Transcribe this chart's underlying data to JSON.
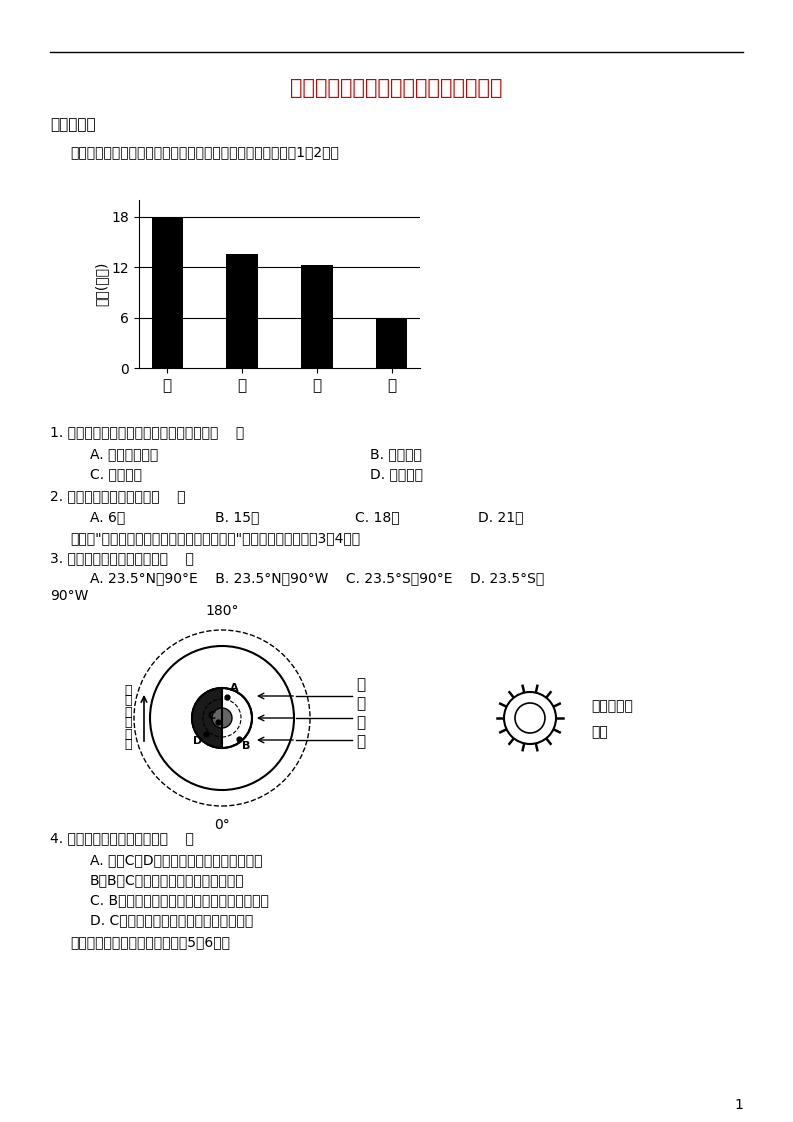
{
  "title": "建瓯二中高三上学期期末考试地理试题",
  "section1": "一，选择题",
  "intro1": "下图为夏至日甲、乙、丙、丁四个地点的昼长状况，读图回答1～2题。",
  "bar_ylabel": "昼长(小时)",
  "bar_categories": [
    "甲",
    "乙",
    "丙",
    "丁"
  ],
  "bar_values": [
    18,
    13.5,
    12.2,
    6
  ],
  "bar_yticks": [
    0,
    6,
    12,
    18
  ],
  "bar_color": "#000000",
  "q1": "1. 甲、乙、丙、丁四个地点的排列顺序是（    ）",
  "q1a": "A. 由低纬到高纬",
  "q1b": "B. 由北到南",
  "q1c": "C. 由东到西",
  "q1d": "D. 由南到北",
  "q2": "2. 图中甲地的日落时刻是（    ）",
  "q2a": "A. 6时",
  "q2b": "B. 15时",
  "q2c": "C. 18时",
  "q2d": "D. 21时",
  "intro2": "下图为\"二分二至节气中某极点上空的俯视图\"，根据图中信息回答3～4题。",
  "q3": "3. 太阳直射点的地理坐标是（    ）",
  "q3opts": "A. 23.5°N，90°E    B. 23.5°N，90°W    C. 23.5°S，90°E    D. 23.5°S，",
  "q3d2": "90°W",
  "label_180": "180°",
  "label_0": "0°",
  "label_tai": "太",
  "label_yang": "阳",
  "label_guang": "光",
  "label_xian": "线",
  "label_earth_rotation": [
    "地",
    "球",
    "日",
    "转",
    "方",
    "向"
  ],
  "label_low_pressure": "某低气压带",
  "label_polar_circle": "极圈",
  "q4": "4. 下列有关说法，错误的是（    ）",
  "q4a": "A. 此时C、D两地昼长夜短且白昼时间相同",
  "q4b": "B、B、C两地的正午太阳高度一定不同",
  "q4c": "C. B位于刚果盆地，此时受副热带高气压控制",
  "q4d": "D. C位于阿拉伯半岛，此时气候炎热干燥",
  "intro3": "读右图所示的天气系统图，回答5～6题。",
  "page_num": "1",
  "bg_color": "#ffffff",
  "text_color": "#000000",
  "title_color": "#cc0000"
}
